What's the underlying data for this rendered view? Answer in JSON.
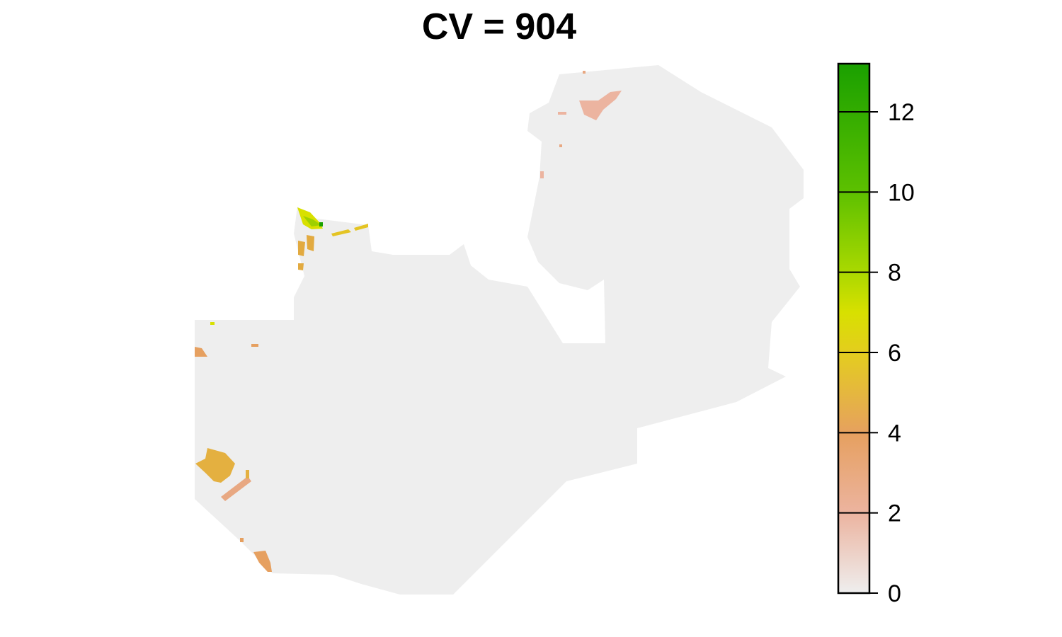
{
  "title": "CV = 904",
  "map": {
    "region_fill": "#eeeeee",
    "hotspots": [
      {
        "name": "north-west-patch",
        "value": 7.5
      },
      {
        "name": "north-west-streak",
        "value": 5.5
      },
      {
        "name": "west-patch",
        "value": 4.5
      },
      {
        "name": "south-west-cluster",
        "value": 5
      },
      {
        "name": "south-west-band",
        "value": 3
      },
      {
        "name": "south-tip",
        "value": 3.5
      },
      {
        "name": "north-east-patch",
        "value": 1.5
      }
    ]
  },
  "legend": {
    "range": [
      0,
      13.2
    ],
    "ticks": [
      0,
      2,
      4,
      6,
      8,
      10,
      12
    ],
    "tick_labels": [
      "0",
      "2",
      "4",
      "6",
      "8",
      "10",
      "12"
    ],
    "colors": {
      "0": "#eeeeee",
      "2": "#ecb4a0",
      "4": "#e6a060",
      "6": "#e4cc20",
      "7": "#d8e000",
      "8": "#a8d800",
      "10": "#5cc000",
      "12": "#1aa000"
    }
  }
}
